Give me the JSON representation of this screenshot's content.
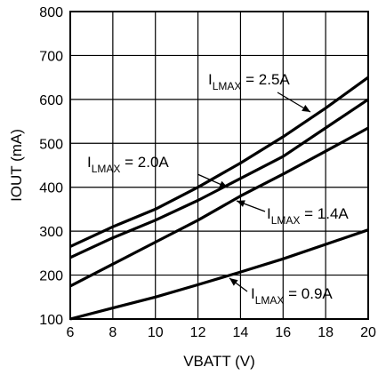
{
  "chart_data": {
    "type": "line",
    "title": "",
    "xlabel": "VBATT (V)",
    "ylabel": "IOUT (mA)",
    "xlim": [
      6,
      20
    ],
    "ylim": [
      100,
      800
    ],
    "xticks": [
      "6",
      "8",
      "10",
      "12",
      "14",
      "16",
      "18",
      "20"
    ],
    "yticks": [
      "100",
      "200",
      "300",
      "400",
      "500",
      "600",
      "700",
      "800"
    ],
    "grid": true,
    "series": [
      {
        "name": "ILMAX = 2.5A",
        "label_main": "I",
        "label_sub": "LMAX",
        "label_rest": " = 2.5A",
        "x": [
          6,
          8,
          10,
          12,
          14,
          16,
          18,
          20
        ],
        "y": [
          265,
          310,
          350,
          400,
          455,
          515,
          580,
          650
        ]
      },
      {
        "name": "ILMAX = 2.0A",
        "label_main": "I",
        "label_sub": "LMAX",
        "label_rest": " = 2.0A",
        "x": [
          6,
          8,
          10,
          12,
          14,
          16,
          18,
          20
        ],
        "y": [
          240,
          285,
          325,
          370,
          420,
          470,
          535,
          600
        ]
      },
      {
        "name": "ILMAX = 1.4A",
        "label_main": "I",
        "label_sub": "LMAX",
        "label_rest": " = 1.4A",
        "x": [
          6,
          8,
          10,
          12,
          14,
          16,
          18,
          20
        ],
        "y": [
          175,
          225,
          275,
          325,
          380,
          430,
          482,
          535
        ]
      },
      {
        "name": "ILMAX = 0.9A",
        "label_main": "I",
        "label_sub": "LMAX",
        "label_rest": " = 0.9A",
        "x": [
          6,
          8,
          10,
          12,
          14,
          16,
          18,
          20
        ],
        "y": [
          100,
          125,
          150,
          178,
          207,
          237,
          270,
          303
        ]
      }
    ]
  }
}
